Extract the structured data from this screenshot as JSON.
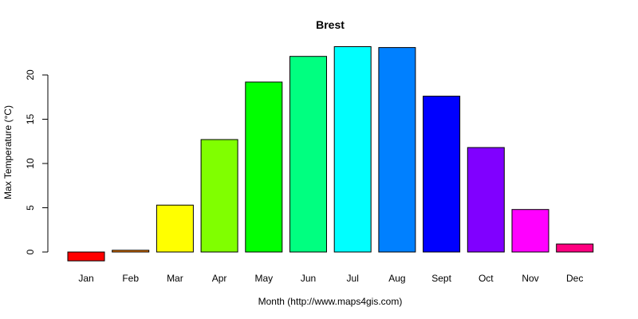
{
  "chart_data": {
    "type": "bar",
    "title": "Brest",
    "xlabel": "Month (http://www.maps4gis.com)",
    "ylabel": "Max Temperature (°C)",
    "categories": [
      "Jan",
      "Feb",
      "Mar",
      "Apr",
      "May",
      "Jun",
      "Jul",
      "Aug",
      "Sept",
      "Oct",
      "Nov",
      "Dec"
    ],
    "values": [
      -1.0,
      0.2,
      5.3,
      12.7,
      19.2,
      22.1,
      23.2,
      23.1,
      17.6,
      11.8,
      4.8,
      0.9
    ],
    "colors": [
      "#FF0000",
      "#FF8000",
      "#FFFF00",
      "#80FF00",
      "#00FF00",
      "#00FF80",
      "#00FFFF",
      "#0080FF",
      "#0000FF",
      "#8000FF",
      "#FF00FF",
      "#FF0080"
    ],
    "yticks": [
      0,
      5,
      10,
      15,
      20
    ],
    "ylim": [
      -1.0,
      23.2
    ],
    "grid": false,
    "legend": "none"
  }
}
